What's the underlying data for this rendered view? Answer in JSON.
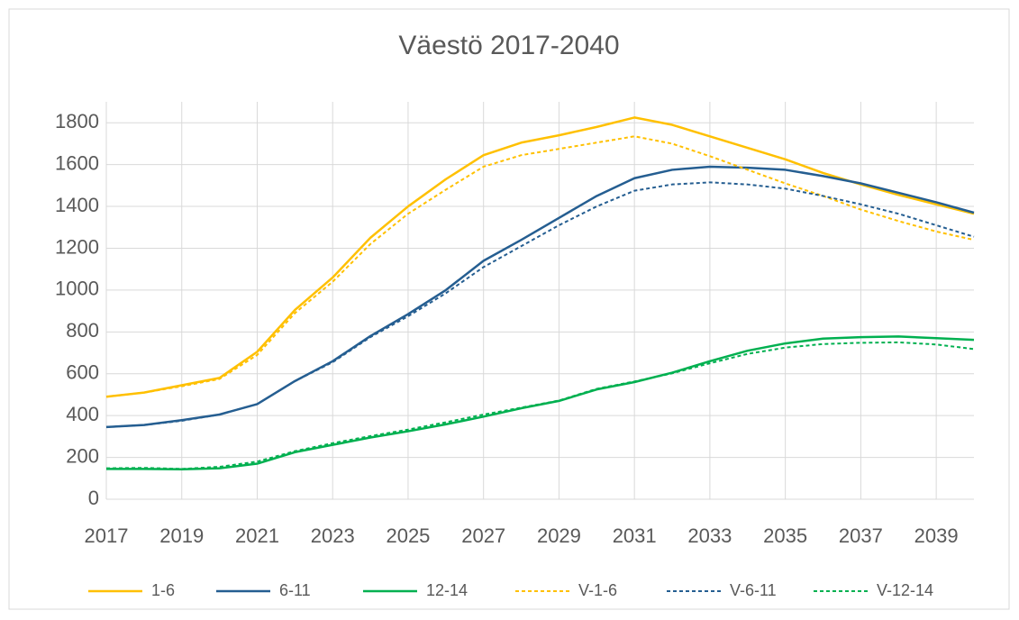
{
  "chart_data": {
    "type": "line",
    "title": "Väestö 2017-2040",
    "x": [
      2017,
      2018,
      2019,
      2020,
      2021,
      2022,
      2023,
      2024,
      2025,
      2026,
      2027,
      2028,
      2029,
      2030,
      2031,
      2032,
      2033,
      2034,
      2035,
      2036,
      2037,
      2038,
      2039,
      2040
    ],
    "xlim": [
      2017,
      2040
    ],
    "xticks": [
      2017,
      2019,
      2021,
      2023,
      2025,
      2027,
      2029,
      2031,
      2033,
      2035,
      2037,
      2039
    ],
    "ylim": [
      0,
      1900
    ],
    "yticks": [
      0,
      200,
      400,
      600,
      800,
      1000,
      1200,
      1400,
      1600,
      1800
    ],
    "grid": true,
    "legend": "bottom",
    "series": [
      {
        "name": "1-6",
        "color": "#ffc000",
        "dashed": false,
        "values": [
          490,
          510,
          545,
          580,
          705,
          905,
          1060,
          1250,
          1400,
          1530,
          1645,
          1705,
          1740,
          1780,
          1825,
          1790,
          1735,
          1680,
          1625,
          1560,
          1505,
          1455,
          1410,
          1365
        ]
      },
      {
        "name": "6-11",
        "color": "#255e91",
        "dashed": false,
        "values": [
          345,
          355,
          378,
          405,
          455,
          565,
          660,
          780,
          885,
          1000,
          1140,
          1240,
          1345,
          1450,
          1535,
          1575,
          1590,
          1585,
          1575,
          1545,
          1510,
          1465,
          1420,
          1370
        ]
      },
      {
        "name": "12-14",
        "color": "#00b050",
        "dashed": false,
        "values": [
          145,
          145,
          143,
          148,
          170,
          225,
          260,
          295,
          325,
          358,
          395,
          435,
          470,
          525,
          560,
          605,
          660,
          710,
          745,
          768,
          775,
          778,
          770,
          762
        ]
      },
      {
        "name": "V-1-6",
        "color": "#ffc000",
        "dashed": true,
        "values": [
          490,
          510,
          540,
          575,
          690,
          890,
          1040,
          1220,
          1365,
          1480,
          1590,
          1645,
          1675,
          1705,
          1735,
          1700,
          1640,
          1575,
          1510,
          1450,
          1385,
          1330,
          1280,
          1240
        ]
      },
      {
        "name": "V-6-11",
        "color": "#255e91",
        "dashed": true,
        "values": [
          345,
          355,
          375,
          405,
          455,
          565,
          655,
          775,
          875,
          985,
          1110,
          1210,
          1310,
          1400,
          1475,
          1505,
          1515,
          1505,
          1485,
          1450,
          1410,
          1365,
          1310,
          1255
        ]
      },
      {
        "name": "V-12-14",
        "color": "#00b050",
        "dashed": true,
        "values": [
          148,
          150,
          145,
          155,
          180,
          230,
          268,
          302,
          333,
          368,
          405,
          438,
          472,
          528,
          563,
          602,
          650,
          695,
          725,
          742,
          748,
          750,
          740,
          718
        ]
      }
    ]
  }
}
